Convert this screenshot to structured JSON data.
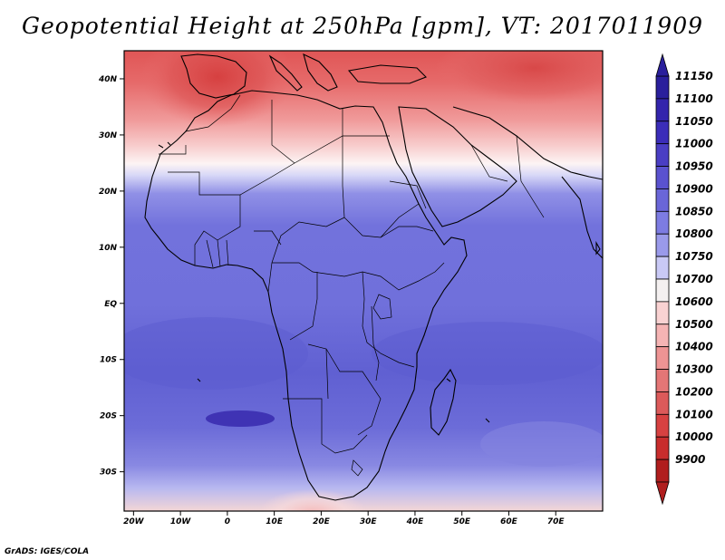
{
  "title": "Geopotential Height at 250hPa [gpm], VT: 2017011909",
  "footer": "GrADS: IGES/COLA",
  "map": {
    "variable": "Geopotential Height",
    "level": "250hPa",
    "units": "gpm",
    "valid_time": "2017011909",
    "lon_range": [
      -22,
      80
    ],
    "lat_range": [
      -37,
      45
    ],
    "lon_ticks": [
      {
        "value": -20,
        "label": "20W"
      },
      {
        "value": -10,
        "label": "10W"
      },
      {
        "value": 0,
        "label": "0"
      },
      {
        "value": 10,
        "label": "10E"
      },
      {
        "value": 20,
        "label": "20E"
      },
      {
        "value": 30,
        "label": "30E"
      },
      {
        "value": 40,
        "label": "40E"
      },
      {
        "value": 50,
        "label": "50E"
      },
      {
        "value": 60,
        "label": "60E"
      },
      {
        "value": 70,
        "label": "70E"
      }
    ],
    "lat_ticks": [
      {
        "value": 40,
        "label": "40N"
      },
      {
        "value": 30,
        "label": "30N"
      },
      {
        "value": 20,
        "label": "20N"
      },
      {
        "value": 10,
        "label": "10N"
      },
      {
        "value": 0,
        "label": "EQ"
      },
      {
        "value": -10,
        "label": "10S"
      },
      {
        "value": -20,
        "label": "20S"
      },
      {
        "value": -30,
        "label": "30S"
      }
    ]
  },
  "colorbar": {
    "levels": [
      {
        "label": "11150",
        "color": "#2a1f9c"
      },
      {
        "label": "11100",
        "color": "#3324ac"
      },
      {
        "label": "11050",
        "color": "#3b2db9"
      },
      {
        "label": "11000",
        "color": "#4a3ec4"
      },
      {
        "label": "10950",
        "color": "#5a52cf"
      },
      {
        "label": "10900",
        "color": "#6a66d8"
      },
      {
        "label": "10850",
        "color": "#7d7ce2"
      },
      {
        "label": "10800",
        "color": "#9a9aea"
      },
      {
        "label": "10750",
        "color": "#c9c9f5"
      },
      {
        "label": "10700",
        "color": "#f4f0f0"
      },
      {
        "label": "10600",
        "color": "#f9d2d2"
      },
      {
        "label": "10500",
        "color": "#f5b4b4"
      },
      {
        "label": "10400",
        "color": "#ee9494"
      },
      {
        "label": "10300",
        "color": "#e47676"
      },
      {
        "label": "10200",
        "color": "#dc5a5a"
      },
      {
        "label": "10100",
        "color": "#d74141"
      },
      {
        "label": "10000",
        "color": "#c82d2d"
      },
      {
        "label": "9900",
        "color": "#b01e1e"
      }
    ]
  }
}
